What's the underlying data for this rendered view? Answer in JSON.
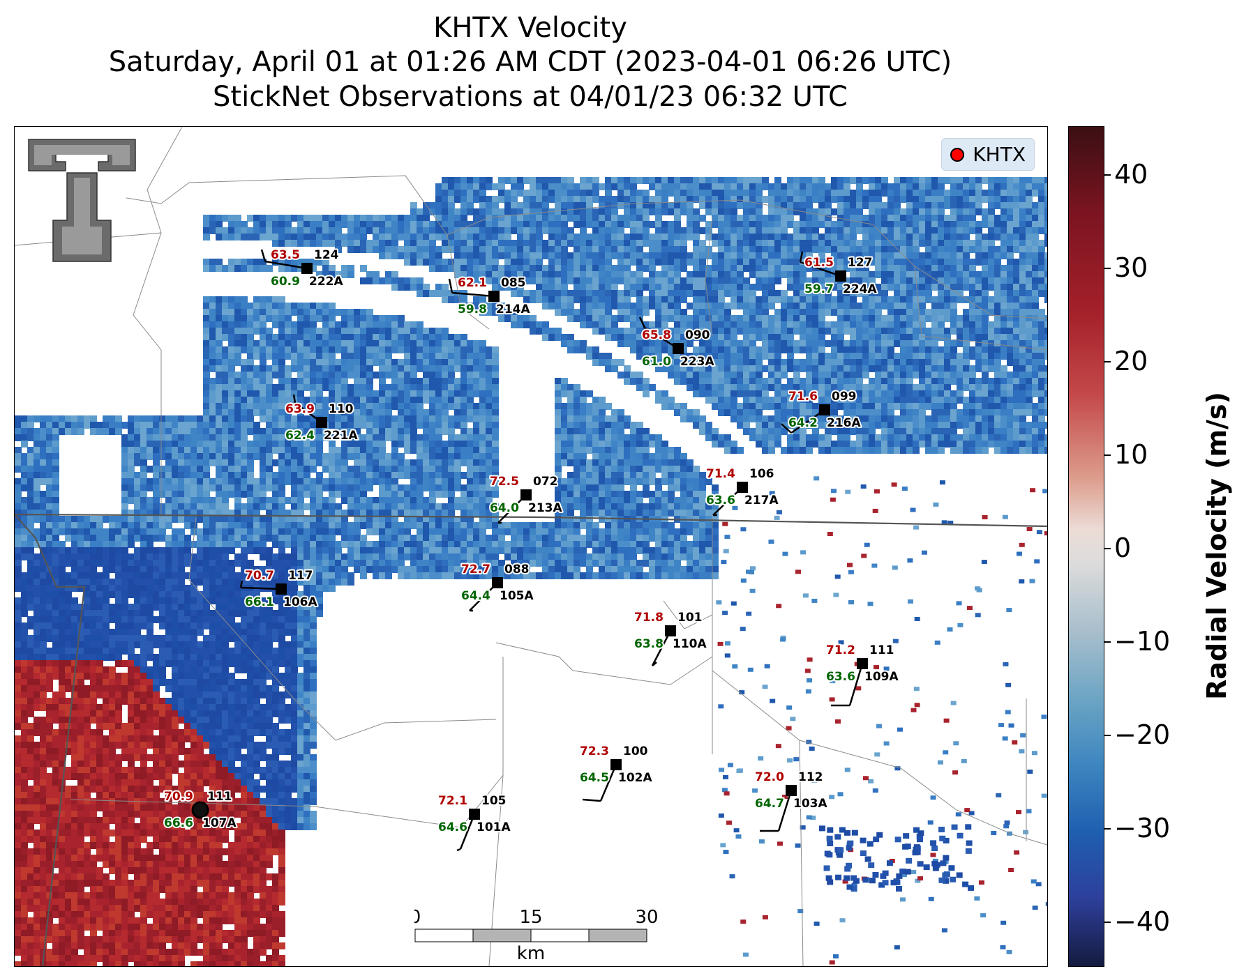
{
  "title": {
    "line1": "KHTX Velocity",
    "line2": "Saturday, April 01 at 01:26 AM CDT (2023-04-01 06:26 UTC)",
    "line3": "StickNet Observations at 04/01/23 06:32 UTC"
  },
  "legend": {
    "label": "KHTX"
  },
  "colorbar": {
    "label": "Radial Velocity (m/s)",
    "ticks": [
      "40",
      "30",
      "20",
      "10",
      "0",
      "−10",
      "−20",
      "−30",
      "−40"
    ],
    "range": [
      -45,
      45
    ]
  },
  "scalebar": {
    "ticks": [
      "0",
      "15",
      "30"
    ],
    "unit": "km"
  },
  "colors": {
    "temp": "#b00000",
    "dewpoint": "#006400",
    "text": "#000000"
  },
  "stations": [
    {
      "id": "222A",
      "temp": "63.5",
      "dew": "60.9",
      "dir": "124"
    },
    {
      "id": "214A",
      "temp": "62.1",
      "dew": "59.8",
      "dir": "085"
    },
    {
      "id": "224A",
      "temp": "61.5",
      "dew": "59.7",
      "dir": "127"
    },
    {
      "id": "223A",
      "temp": "65.8",
      "dew": "61.0",
      "dir": "090"
    },
    {
      "id": "221A",
      "temp": "63.9",
      "dew": "62.4",
      "dir": "110"
    },
    {
      "id": "216A",
      "temp": "71.6",
      "dew": "64.2",
      "dir": "099"
    },
    {
      "id": "213A",
      "temp": "72.5",
      "dew": "64.0",
      "dir": "072"
    },
    {
      "id": "217A",
      "temp": "71.4",
      "dew": "63.6",
      "dir": "106"
    },
    {
      "id": "106A",
      "temp": "70.7",
      "dew": "66.1",
      "dir": "117"
    },
    {
      "id": "105A",
      "temp": "72.7",
      "dew": "64.4",
      "dir": "088"
    },
    {
      "id": "110A",
      "temp": "71.8",
      "dew": "63.8",
      "dir": "101"
    },
    {
      "id": "109A",
      "temp": "71.2",
      "dew": "63.6",
      "dir": "111"
    },
    {
      "id": "102A",
      "temp": "72.3",
      "dew": "64.5",
      "dir": "100"
    },
    {
      "id": "103A",
      "temp": "72.0",
      "dew": "64.7",
      "dir": "112"
    },
    {
      "id": "101A",
      "temp": "72.1",
      "dew": "64.6",
      "dir": "105"
    },
    {
      "id": "107A",
      "temp": "70.9",
      "dew": "66.6",
      "dir": "111"
    }
  ]
}
